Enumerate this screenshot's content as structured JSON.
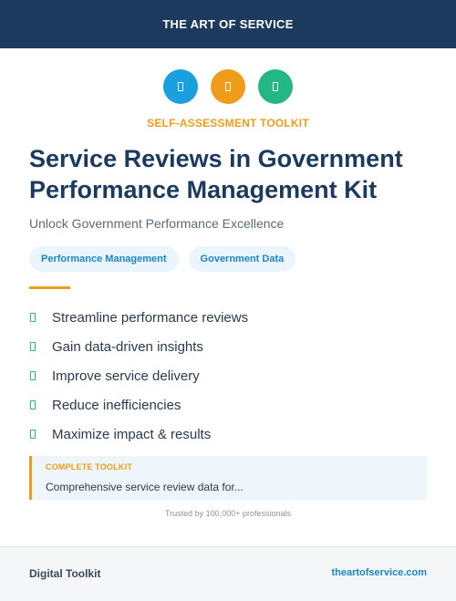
{
  "header": {
    "brand": "THE ART OF SERVICE"
  },
  "icons": [
    {
      "name": "document-icon",
      "color": "#1aa0de"
    },
    {
      "name": "document-icon",
      "color": "#ef9c1a"
    },
    {
      "name": "document-icon",
      "color": "#22b783"
    }
  ],
  "kicker": "SELF-ASSESSMENT TOOLKIT",
  "title": "Service Reviews in Government Performance Management Kit",
  "subtitle": "Unlock Government Performance Excellence",
  "tags": [
    "Performance Management",
    "Government Data"
  ],
  "features": [
    "Streamline performance reviews",
    "Gain data-driven insights",
    "Improve service delivery",
    "Reduce inefficiencies",
    "Maximize impact & results"
  ],
  "callout": {
    "label": "COMPLETE TOOLKIT",
    "text": "Comprehensive service review data for..."
  },
  "trusted": "Trusted by 100,000+ professionals",
  "footer": {
    "left": "Digital Toolkit",
    "right": "theartofservice.com"
  },
  "colors": {
    "navy": "#1c3a5e",
    "orange": "#ef9c1a",
    "blue": "#1aa0de",
    "green": "#22b783"
  }
}
